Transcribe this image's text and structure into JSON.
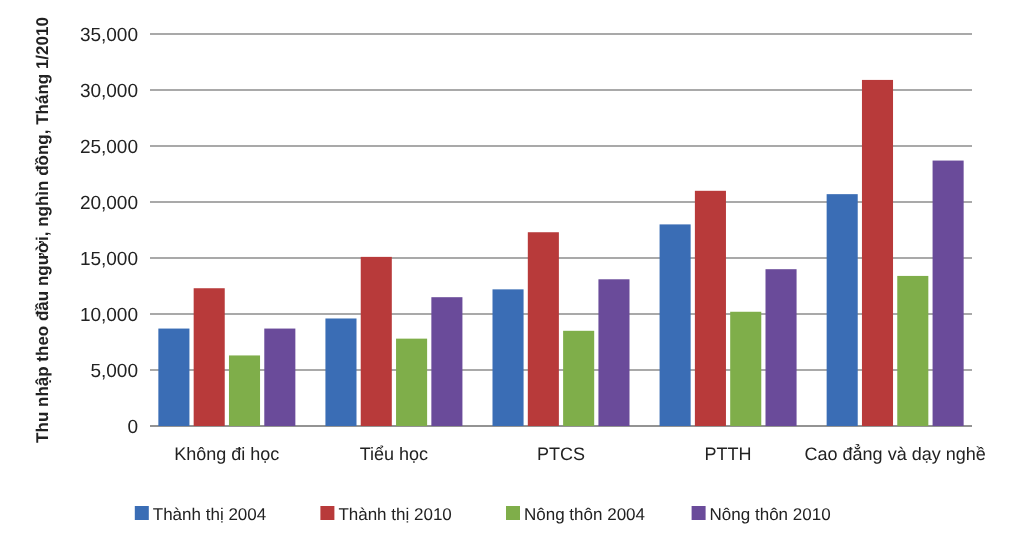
{
  "chart_data": {
    "type": "bar",
    "ylabel": "Thu nhập theo đầu người, nghìn đồng, Tháng 1/2010",
    "categories": [
      "Không đi học",
      "Tiểu học",
      "PTCS",
      "PTTH",
      "Cao đẳng và dạy nghề"
    ],
    "series": [
      {
        "name": "Thành thị 2004",
        "color": "#3a6db5",
        "values": [
          8700,
          9600,
          12200,
          18000,
          20700
        ]
      },
      {
        "name": "Thành thị 2010",
        "color": "#b83a3a",
        "values": [
          12300,
          15100,
          17300,
          21000,
          30900
        ]
      },
      {
        "name": "Nông thôn 2004",
        "color": "#7fae4a",
        "values": [
          6300,
          7800,
          8500,
          10200,
          13400
        ]
      },
      {
        "name": "Nông thôn 2010",
        "color": "#6a4b9a",
        "values": [
          8700,
          11500,
          13100,
          14000,
          23700
        ]
      }
    ],
    "ylim": [
      0,
      35000
    ],
    "yticks": [
      {
        "value": 0,
        "label": "0"
      },
      {
        "value": 5000,
        "label": "5,000"
      },
      {
        "value": 10000,
        "label": "10,000"
      },
      {
        "value": 15000,
        "label": "15,000"
      },
      {
        "value": 20000,
        "label": "20,000"
      },
      {
        "value": 25000,
        "label": "25,000"
      },
      {
        "value": 30000,
        "label": "30,000"
      },
      {
        "value": 35000,
        "label": "35,000"
      }
    ],
    "grid": "y",
    "legend": "bottom"
  }
}
